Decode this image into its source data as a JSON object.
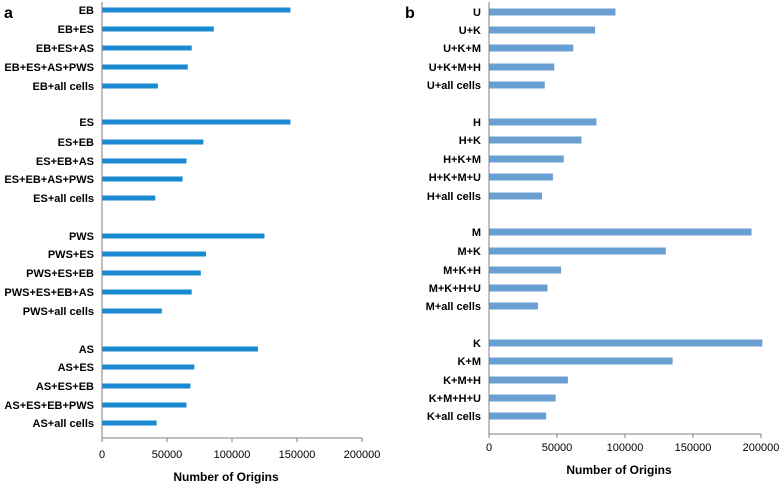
{
  "chart_data": [
    {
      "type": "bar",
      "orientation": "horizontal",
      "panel_label": "a",
      "xlabel": "Number of Origins",
      "xlim": [
        0,
        200000
      ],
      "xticks": [
        0,
        50000,
        100000,
        150000,
        200000
      ],
      "bar_color": "#1a8ad0",
      "groups": [
        {
          "categories": [
            "EB",
            "EB+ES",
            "EB+ES+AS",
            "EB+ES+AS+PWS",
            "EB+all cells"
          ],
          "values": [
            145000,
            86000,
            69000,
            66000,
            43000
          ]
        },
        {
          "categories": [
            "ES",
            "ES+EB",
            "ES+EB+AS",
            "ES+EB+AS+PWS",
            "ES+all cells"
          ],
          "values": [
            145000,
            78000,
            65000,
            62000,
            41000
          ]
        },
        {
          "categories": [
            "PWS",
            "PWS+ES",
            "PWS+ES+EB",
            "PWS+ES+EB+AS",
            "PWS+all cells"
          ],
          "values": [
            125000,
            80000,
            76000,
            69000,
            46000
          ]
        },
        {
          "categories": [
            "AS",
            "AS+ES",
            "AS+ES+EB",
            "AS+ES+EB+PWS",
            "AS+all cells"
          ],
          "values": [
            120000,
            71000,
            68000,
            65000,
            42000
          ]
        }
      ]
    },
    {
      "type": "bar",
      "orientation": "horizontal",
      "panel_label": "b",
      "xlabel": "Number of Origins",
      "xlim": [
        0,
        200000
      ],
      "xticks": [
        0,
        50000,
        100000,
        150000,
        200000
      ],
      "bar_color": "#6a9fd2",
      "groups": [
        {
          "categories": [
            "U",
            "U+K",
            "U+K+M",
            "U+K+M+H",
            "U+all cells"
          ],
          "values": [
            93000,
            78000,
            62000,
            48000,
            41000
          ]
        },
        {
          "categories": [
            "H",
            "H+K",
            "H+K+M",
            "H+K+M+U",
            "H+all cells"
          ],
          "values": [
            79000,
            68000,
            55000,
            47000,
            39000
          ]
        },
        {
          "categories": [
            "M",
            "M+K",
            "M+K+H",
            "M+K+H+U",
            "M+all cells"
          ],
          "values": [
            193000,
            130000,
            53000,
            43000,
            36000
          ]
        },
        {
          "categories": [
            "K",
            "K+M",
            "K+M+H",
            "K+M+H+U",
            "K+all cells"
          ],
          "values": [
            201000,
            135000,
            58000,
            49000,
            42000
          ]
        }
      ]
    }
  ]
}
